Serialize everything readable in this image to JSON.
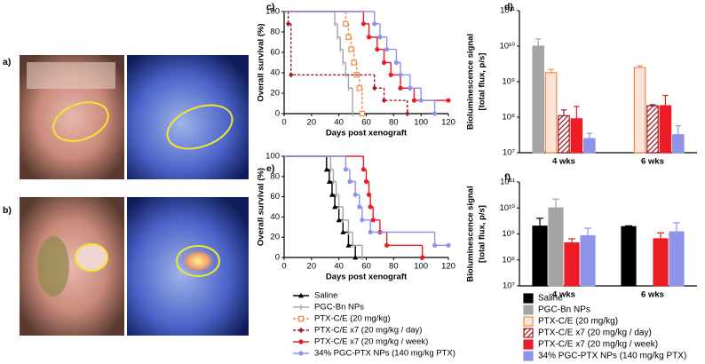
{
  "panels": [
    {
      "label": "a)"
    },
    {
      "label": "b)"
    }
  ],
  "chart_data": [
    {
      "type": "survival",
      "panel_label": "c)",
      "xlabel": "Days post xenograft",
      "ylabel": "Overall survival (%)",
      "xlim": [
        0,
        120
      ],
      "xticks": [
        0,
        20,
        40,
        60,
        80,
        100,
        120
      ],
      "ylim": [
        0,
        100
      ],
      "yticks": [
        0,
        20,
        40,
        60,
        80,
        100
      ],
      "series": [
        {
          "name": "PGC-Bn NPs",
          "color": "#a5a5a5",
          "marker": "dash",
          "dashed": false,
          "x": [
            0,
            37,
            39,
            41,
            43,
            45,
            47,
            50
          ],
          "values": [
            100,
            88,
            75,
            63,
            50,
            38,
            25,
            0
          ]
        },
        {
          "name": "PTX-C/E (20 mg/kg)",
          "color": "#f08a4b",
          "marker": "square",
          "dashed": true,
          "x": [
            0,
            45,
            47,
            49,
            51,
            53,
            55,
            57
          ],
          "values": [
            100,
            88,
            75,
            63,
            50,
            38,
            25,
            0
          ]
        },
        {
          "name": "PTX-C/E x7 (20 mg/kg / day)",
          "color": "#9b1c24",
          "marker": "diamond",
          "dashed": true,
          "x": [
            0,
            3,
            5,
            66,
            73,
            90
          ],
          "values": [
            100,
            88,
            38,
            25,
            13,
            0
          ]
        },
        {
          "name": "PTX-C/E x7 (20 mg/kg / week)",
          "color": "#ec1c24",
          "marker": "circle",
          "dashed": false,
          "x": [
            0,
            58,
            62,
            68,
            73,
            78,
            85,
            95,
            120
          ],
          "values": [
            100,
            88,
            75,
            63,
            50,
            38,
            25,
            13,
            13
          ]
        },
        {
          "name": "34% PGC-PTX NPs (140 mg/kg PTX)",
          "color": "#8e95e8",
          "marker": "circle",
          "dashed": false,
          "x": [
            0,
            66,
            70,
            75,
            82,
            85,
            92,
            100,
            110
          ],
          "values": [
            100,
            88,
            75,
            63,
            50,
            38,
            25,
            13,
            0
          ]
        }
      ]
    },
    {
      "type": "logbar",
      "panel_label": "d)",
      "ylabel": [
        "Bioluminescence signal",
        "[total flux, p/s]"
      ],
      "categories": [
        "4 wks",
        "6 wks"
      ],
      "ylim": [
        10000000,
        100000000000
      ],
      "yticks": [
        {
          "value": 10000000,
          "label": "10⁷"
        },
        {
          "value": 100000000,
          "label": "10⁸"
        },
        {
          "value": 1000000000,
          "label": "10⁹"
        },
        {
          "value": 10000000000,
          "label": "10¹⁰"
        },
        {
          "value": 100000000000,
          "label": "10¹¹"
        }
      ],
      "series": [
        {
          "name": "PGC-Bn NPs",
          "color": "#a5a5a5",
          "style": "fill",
          "values": [
            10000000000,
            null
          ],
          "errors": [
            6000000000,
            null
          ]
        },
        {
          "name": "PTX-C/E (20 mg/kg)",
          "color": "#f08a4b",
          "style": "open",
          "values": [
            1800000000,
            2500000000
          ],
          "errors": [
            400000000,
            300000000
          ]
        },
        {
          "name": "PTX-C/E x7 (20 mg/kg / day)",
          "color": "#9b1c24",
          "style": "hatch",
          "values": [
            110000000,
            210000000
          ],
          "errors": [
            50000000,
            15000000
          ]
        },
        {
          "name": "PTX-C/E x7 (20 mg/kg / week)",
          "color": "#ec1c24",
          "style": "fill",
          "values": [
            90000000,
            210000000
          ],
          "errors": [
            110000000,
            200000000
          ]
        },
        {
          "name": "34% PGC-PTX NPs (140 mg/kg PTX)",
          "color": "#8e95e8",
          "style": "fill",
          "values": [
            25000000,
            32000000
          ],
          "errors": [
            10000000,
            25000000
          ]
        }
      ]
    },
    {
      "type": "survival",
      "panel_label": "e)",
      "xlabel": "Days post xenograft",
      "ylabel": "Overall survival (%)",
      "xlim": [
        0,
        120
      ],
      "xticks": [
        0,
        20,
        40,
        60,
        80,
        100,
        120
      ],
      "ylim": [
        0,
        100
      ],
      "yticks": [
        0,
        20,
        40,
        60,
        80,
        100
      ],
      "series": [
        {
          "name": "Saline",
          "color": "#000000",
          "marker": "triangle",
          "dashed": false,
          "x": [
            0,
            31,
            33,
            35,
            37,
            40,
            43,
            47,
            52
          ],
          "values": [
            100,
            87,
            75,
            62,
            50,
            37,
            25,
            12,
            0
          ]
        },
        {
          "name": "PGC-Bn NPs",
          "color": "#a5a5a5",
          "marker": "dash",
          "dashed": false,
          "x": [
            0,
            34,
            36,
            38,
            40,
            43,
            47,
            50,
            57
          ],
          "values": [
            100,
            87,
            75,
            62,
            50,
            37,
            25,
            12,
            0
          ]
        },
        {
          "name": "PTX-C/E x7 (20 mg/kg / week)",
          "color": "#ec1c24",
          "marker": "circle",
          "dashed": false,
          "x": [
            0,
            58,
            60,
            62,
            63,
            65,
            70,
            75,
            101
          ],
          "values": [
            100,
            87,
            75,
            62,
            50,
            37,
            25,
            12,
            0
          ]
        },
        {
          "name": "34% PGC-PTX NPs (140 mg/kg PTX)",
          "color": "#8e95e8",
          "marker": "circle",
          "dashed": false,
          "x": [
            0,
            45,
            48,
            52,
            55,
            57,
            63,
            110,
            120
          ],
          "values": [
            100,
            87,
            75,
            62,
            50,
            37,
            25,
            12,
            12
          ]
        }
      ]
    },
    {
      "type": "logbar",
      "panel_label": "f)",
      "ylabel": [
        "Bioluminescence signal",
        "[total flux, p/s]"
      ],
      "categories": [
        "4 wks",
        "6 wks"
      ],
      "ylim": [
        10000000,
        100000000000
      ],
      "yticks": [
        {
          "value": 10000000,
          "label": "10⁷"
        },
        {
          "value": 100000000,
          "label": "10⁸"
        },
        {
          "value": 1000000000,
          "label": "10⁹"
        },
        {
          "value": 10000000000,
          "label": "10¹⁰"
        },
        {
          "value": 100000000000,
          "label": "10¹¹"
        }
      ],
      "series": [
        {
          "name": "Saline",
          "color": "#000000",
          "style": "fill",
          "values": [
            2000000000,
            1900000000
          ],
          "errors": [
            2000000000,
            150000000
          ]
        },
        {
          "name": "PGC-Bn NPs",
          "color": "#a5a5a5",
          "style": "fill",
          "values": [
            10000000000,
            null
          ],
          "errors": [
            12000000000,
            null
          ]
        },
        {
          "name": "PTX-C/E x7 (20 mg/kg / week)",
          "color": "#ec1c24",
          "style": "fill",
          "values": [
            450000000,
            650000000
          ],
          "errors": [
            200000000,
            450000000
          ]
        },
        {
          "name": "34% PGC-PTX NPs (140 mg/kg PTX)",
          "color": "#8e95e8",
          "style": "fill",
          "values": [
            850000000,
            1200000000
          ],
          "errors": [
            800000000,
            1500000000
          ]
        }
      ]
    }
  ],
  "legends": [
    {
      "kind": "line",
      "entries": [
        {
          "name": "Saline",
          "color": "#000000",
          "marker": "triangle",
          "dashed": false
        },
        {
          "name": "PGC-Bn NPs",
          "color": "#a5a5a5",
          "marker": "dash",
          "dashed": false
        },
        {
          "name": "PTX-C/E (20 mg/kg)",
          "color": "#f08a4b",
          "marker": "square",
          "dashed": true
        },
        {
          "name": "PTX-C/E x7 (20 mg/kg / day)",
          "color": "#9b1c24",
          "marker": "diamond",
          "dashed": true
        },
        {
          "name": "PTX-C/E x7 (20 mg/kg / week)",
          "color": "#ec1c24",
          "marker": "circle",
          "dashed": false
        },
        {
          "name": "34% PGC-PTX NPs (140 mg/kg PTX)",
          "color": "#8e95e8",
          "marker": "circle",
          "dashed": false
        }
      ]
    },
    {
      "kind": "box",
      "entries": [
        {
          "name": "Saline",
          "color": "#000000",
          "style": "fill"
        },
        {
          "name": "PGC-Bn NPs",
          "color": "#a5a5a5",
          "style": "fill"
        },
        {
          "name": "PTX-C/E (20 mg/kg)",
          "color": "#f08a4b",
          "style": "open"
        },
        {
          "name": "PTX-C/E x7 (20 mg/kg / day)",
          "color": "#9b1c24",
          "style": "hatch"
        },
        {
          "name": "PTX-C/E x7 (20 mg/kg / week)",
          "color": "#ec1c24",
          "style": "fill"
        },
        {
          "name": "34% PGC-PTX NPs (140 mg/kg PTX)",
          "color": "#8e95e8",
          "style": "fill"
        }
      ]
    }
  ]
}
